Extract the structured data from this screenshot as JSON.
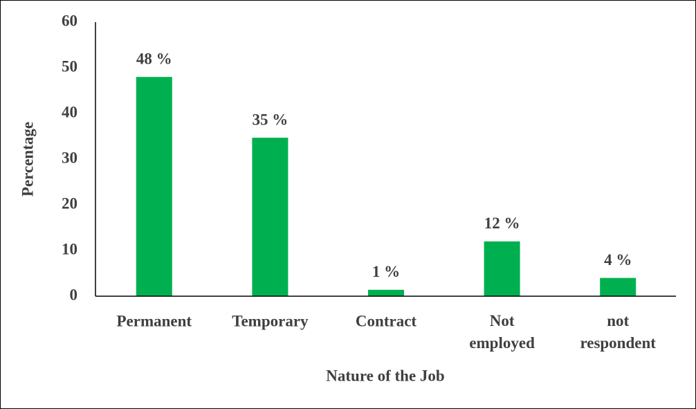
{
  "chart_data": {
    "type": "bar",
    "categories": [
      "Permanent",
      "Temporary",
      "Contract",
      "Not employed",
      "not respondent"
    ],
    "values": [
      48,
      34.7,
      1.4,
      12,
      4
    ],
    "value_labels": [
      "48 %",
      "35 %",
      "1 %",
      "12 %",
      "4 %"
    ],
    "color": "#00b050",
    "ylim": [
      0,
      60
    ],
    "yticks": [
      0,
      10,
      20,
      30,
      40,
      50,
      60
    ],
    "y_label": "Percentage",
    "x_label": "Nature of the Job",
    "grid": false
  }
}
